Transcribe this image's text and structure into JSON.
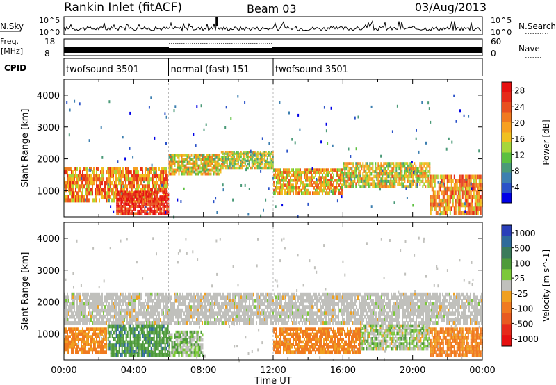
{
  "header": {
    "station": "Rankin Inlet (fitACF)",
    "beam": "Beam 03",
    "date": "03/Aug/2013"
  },
  "top_panel": {
    "nsky_label": "N.Sky",
    "nsearch_label": "N.Search",
    "left_ticks": [
      "10^5",
      "10^0"
    ],
    "right_ticks": [
      "10^5",
      "10^0"
    ],
    "freq_label_1": "Freq.",
    "freq_label_2": "[MHz]",
    "freq_ticks": [
      "18",
      "8"
    ],
    "nave_label": "Nave",
    "nave_ticks": [
      "60",
      "0"
    ],
    "cpid_label": "CPID",
    "cpid_segments": [
      {
        "label": "twofsound 3501",
        "start_h": 0,
        "end_h": 6
      },
      {
        "label": "normal (fast) 151",
        "start_h": 6,
        "end_h": 12
      },
      {
        "label": "twofsound 3501",
        "start_h": 12,
        "end_h": 24
      }
    ]
  },
  "colors": {
    "power_scale": [
      "#0000e6",
      "#2a52c8",
      "#3d7fb0",
      "#4a9a78",
      "#5cc040",
      "#a6d63a",
      "#f0c020",
      "#f7a020",
      "#f07a20",
      "#e85020",
      "#e62a1a",
      "#e61010"
    ],
    "velocity_scale": [
      "#2a3fb8",
      "#2f6a9a",
      "#3a7a5a",
      "#4e9a3a",
      "#7cc83a",
      "#c0c0bc",
      "#f0a020",
      "#f07a20",
      "#e85a20",
      "#e62a1a",
      "#e61010"
    ]
  },
  "chart_data": [
    {
      "type": "heatmap",
      "title": "Power",
      "xlabel": "Time UT",
      "ylabel": "Slant Range [km]",
      "xlim": [
        0,
        24
      ],
      "ylim": [
        180,
        4500
      ],
      "x_tick_labels": [
        "00:00",
        "04:00",
        "08:00",
        "12:00",
        "16:00",
        "20:00",
        "00:00"
      ],
      "y_tick_labels": [
        "1000",
        "2000",
        "3000",
        "4000"
      ],
      "y_ticks": [
        1000,
        2000,
        3000,
        4000
      ],
      "colorbar": {
        "label": "Power [dB]",
        "ticks": [
          "4",
          "8",
          "12",
          "16",
          "20",
          "24",
          "28"
        ],
        "range": [
          0,
          30
        ]
      },
      "bands": [
        {
          "x": [
            0,
            6
          ],
          "y": [
            650,
            1750
          ],
          "value": 20
        },
        {
          "x": [
            3,
            6
          ],
          "y": [
            250,
            1000
          ],
          "value": 27
        },
        {
          "x": [
            6,
            9
          ],
          "y": [
            1500,
            2150
          ],
          "value": 16
        },
        {
          "x": [
            9,
            12
          ],
          "y": [
            1700,
            2250
          ],
          "value": 14
        },
        {
          "x": [
            12,
            16
          ],
          "y": [
            900,
            1700
          ],
          "value": 18
        },
        {
          "x": [
            16,
            21
          ],
          "y": [
            1100,
            1900
          ],
          "value": 16
        },
        {
          "x": [
            21,
            24
          ],
          "y": [
            250,
            1500
          ],
          "value": 20
        }
      ]
    },
    {
      "type": "heatmap",
      "title": "Velocity",
      "xlabel": "Time UT",
      "ylabel": "Slant Range [km]",
      "xlim": [
        0,
        24
      ],
      "ylim": [
        180,
        4500
      ],
      "x_tick_labels": [
        "00:00",
        "04:00",
        "08:00",
        "12:00",
        "16:00",
        "20:00",
        "00:00"
      ],
      "y_tick_labels": [
        "1000",
        "2000",
        "3000",
        "4000"
      ],
      "y_ticks": [
        1000,
        2000,
        3000,
        4000
      ],
      "colorbar": {
        "label": "Velocity [m s^-1]",
        "ticks": [
          "1000",
          "500",
          "100",
          "25",
          "-25",
          "-100",
          "-500",
          "-1000"
        ]
      },
      "bands": [
        {
          "x": [
            0,
            24
          ],
          "y": [
            1300,
            2300
          ],
          "value": 0
        },
        {
          "x": [
            0,
            2.5
          ],
          "y": [
            400,
            1200
          ],
          "value": -120
        },
        {
          "x": [
            2.5,
            6
          ],
          "y": [
            300,
            1300
          ],
          "value": 200
        },
        {
          "x": [
            6,
            8
          ],
          "y": [
            300,
            1100
          ],
          "value": 60
        },
        {
          "x": [
            12,
            17
          ],
          "y": [
            400,
            1200
          ],
          "value": -150
        },
        {
          "x": [
            17,
            21
          ],
          "y": [
            500,
            1300
          ],
          "value": 30
        },
        {
          "x": [
            21,
            24
          ],
          "y": [
            300,
            1200
          ],
          "value": -140
        }
      ]
    }
  ]
}
